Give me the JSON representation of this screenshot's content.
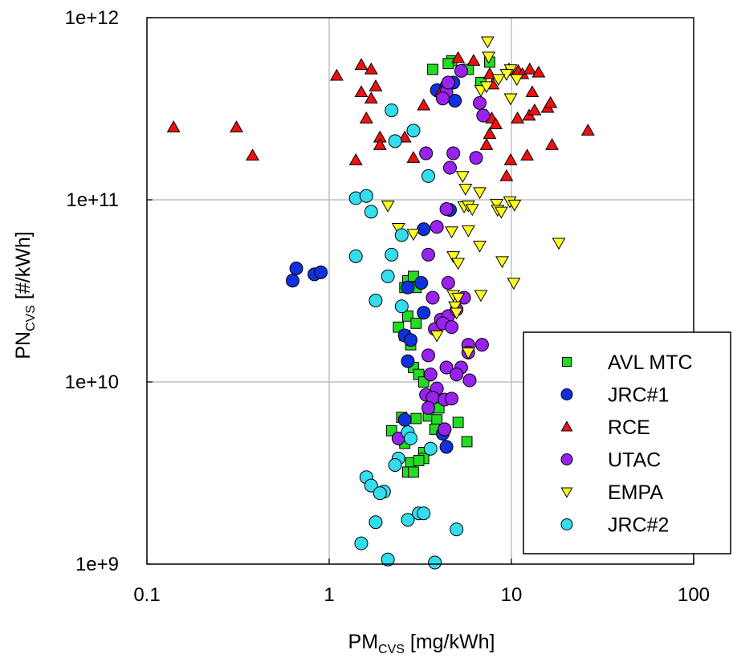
{
  "chart_data": {
    "type": "scatter",
    "x_scale": "log",
    "y_scale": "log",
    "xlim": [
      0.1,
      100
    ],
    "ylim": [
      1000000000,
      1000000000000
    ],
    "grid": true,
    "legend_position": "bottom-right",
    "xlabel": {
      "main": "PM",
      "sub": "CVS",
      "unit": " [mg/kWh]"
    },
    "ylabel": {
      "main": "PN",
      "sub": "CVS",
      "unit": " [#/kWh]"
    },
    "x_ticks": [
      {
        "value": 0.1,
        "label": "0.1"
      },
      {
        "value": 1,
        "label": "1"
      },
      {
        "value": 10,
        "label": "10"
      },
      {
        "value": 100,
        "label": "100"
      }
    ],
    "y_ticks": [
      {
        "value": 1000000000,
        "label": "1e+9"
      },
      {
        "value": 10000000000,
        "label": "1e+10"
      },
      {
        "value": 100000000000,
        "label": "1e+11"
      },
      {
        "value": 1000000000000,
        "label": "1e+12"
      }
    ],
    "series": [
      {
        "name": "AVL MTC",
        "marker": "square",
        "color": "#22dd22",
        "points": [
          [
            3.7,
            520000000000.0
          ],
          [
            4.7,
            580000000000.0
          ],
          [
            4.5,
            560000000000.0
          ],
          [
            5.8,
            520000000000.0
          ],
          [
            6.8,
            440000000000.0
          ],
          [
            7.6,
            570000000000.0
          ],
          [
            2.7,
            36000000000.0
          ],
          [
            2.9,
            38000000000.0
          ],
          [
            3.0,
            33000000000.0
          ],
          [
            2.6,
            33000000000.0
          ],
          [
            2.7,
            23000000000.0
          ],
          [
            3.0,
            21000000000.0
          ],
          [
            2.4,
            20000000000.0
          ],
          [
            2.6,
            18000000000.0
          ],
          [
            2.8,
            16000000000.0
          ],
          [
            2.9,
            12000000000.0
          ],
          [
            3.1,
            11000000000.0
          ],
          [
            3.3,
            10000000000.0
          ],
          [
            3.8,
            8500000000.0
          ],
          [
            4.0,
            7200000000.0
          ],
          [
            3.5,
            6500000000.0
          ],
          [
            3.9,
            6200000000.0
          ],
          [
            2.5,
            6400000000.0
          ],
          [
            3.0,
            6300000000.0
          ],
          [
            3.8,
            5500000000.0
          ],
          [
            5.1,
            6000000000.0
          ],
          [
            5.7,
            4700000000.0
          ],
          [
            2.2,
            5400000000.0
          ],
          [
            2.6,
            4600000000.0
          ],
          [
            3.3,
            4100000000.0
          ],
          [
            2.8,
            3600000000.0
          ],
          [
            3.3,
            3800000000.0
          ],
          [
            2.7,
            3200000000.0
          ],
          [
            2.9,
            3200000000.0
          ],
          [
            3.1,
            3700000000.0
          ]
        ]
      },
      {
        "name": "JRC#1",
        "marker": "circle",
        "color": "#1030dd",
        "points": [
          [
            0.63,
            36000000000.0
          ],
          [
            0.66,
            42000000000.0
          ],
          [
            0.83,
            39000000000.0
          ],
          [
            0.9,
            40000000000.0
          ],
          [
            3.9,
            400000000000.0
          ],
          [
            4.4,
            420000000000.0
          ],
          [
            4.9,
            350000000000.0
          ],
          [
            4.8,
            440000000000.0
          ],
          [
            3.3,
            69000000000.0
          ],
          [
            4.6,
            88000000000.0
          ],
          [
            2.7,
            33000000000.0
          ],
          [
            3.2,
            35000000000.0
          ],
          [
            3.3,
            24000000000.0
          ],
          [
            2.6,
            18000000000.0
          ],
          [
            2.8,
            17000000000.0
          ],
          [
            2.7,
            13000000000.0
          ],
          [
            2.6,
            6200000000.0
          ],
          [
            4.2,
            5200000000.0
          ],
          [
            4.4,
            4400000000.0
          ],
          [
            4.3,
            5500000000.0
          ]
        ]
      },
      {
        "name": "RCE",
        "marker": "triangle-up",
        "color": "#ee1111",
        "points": [
          [
            0.14,
            250000000000.0
          ],
          [
            0.31,
            250000000000.0
          ],
          [
            0.38,
            175000000000.0
          ],
          [
            1.1,
            480000000000.0
          ],
          [
            1.5,
            550000000000.0
          ],
          [
            1.7,
            520000000000.0
          ],
          [
            1.5,
            390000000000.0
          ],
          [
            1.8,
            420000000000.0
          ],
          [
            1.7,
            360000000000.0
          ],
          [
            1.6,
            280000000000.0
          ],
          [
            1.9,
            220000000000.0
          ],
          [
            2.6,
            220000000000.0
          ],
          [
            1.4,
            165000000000.0
          ],
          [
            1.9,
            200000000000.0
          ],
          [
            2.9,
            170000000000.0
          ],
          [
            3.3,
            330000000000.0
          ],
          [
            4.1,
            390000000000.0
          ],
          [
            5.1,
            600000000000.0
          ],
          [
            6.2,
            580000000000.0
          ],
          [
            7.6,
            490000000000.0
          ],
          [
            7.9,
            430000000000.0
          ],
          [
            9.7,
            520000000000.0
          ],
          [
            10.9,
            510000000000.0
          ],
          [
            11.5,
            490000000000.0
          ],
          [
            12.6,
            520000000000.0
          ],
          [
            14.1,
            500000000000.0
          ],
          [
            7.3,
            290000000000.0
          ],
          [
            7.8,
            280000000000.0
          ],
          [
            8.2,
            260000000000.0
          ],
          [
            7.6,
            230000000000.0
          ],
          [
            7.3,
            200000000000.0
          ],
          [
            9.9,
            165000000000.0
          ],
          [
            9.4,
            135000000000.0
          ],
          [
            12.2,
            175000000000.0
          ],
          [
            12.5,
            290000000000.0
          ],
          [
            13.4,
            310000000000.0
          ],
          [
            15.8,
            320000000000.0
          ],
          [
            16.4,
            340000000000.0
          ],
          [
            10.8,
            280000000000.0
          ],
          [
            16.7,
            200000000000.0
          ],
          [
            13.0,
            390000000000.0
          ],
          [
            26.3,
            240000000000.0
          ]
        ]
      },
      {
        "name": "UTAC",
        "marker": "circle",
        "color": "#9922ee",
        "points": [
          [
            5.3,
            510000000000.0
          ],
          [
            4.4,
            390000000000.0
          ],
          [
            4.5,
            440000000000.0
          ],
          [
            4.2,
            360000000000.0
          ],
          [
            6.7,
            340000000000.0
          ],
          [
            7.0,
            290000000000.0
          ],
          [
            3.4,
            180000000000.0
          ],
          [
            4.8,
            180000000000.0
          ],
          [
            6.4,
            170000000000.0
          ],
          [
            4.6,
            150000000000.0
          ],
          [
            4.4,
            89000000000.0
          ],
          [
            3.9,
            71000000000.0
          ],
          [
            3.5,
            50000000000.0
          ],
          [
            4.5,
            35000000000.0
          ],
          [
            3.7,
            29000000000.0
          ],
          [
            4.1,
            22000000000.0
          ],
          [
            4.5,
            23000000000.0
          ],
          [
            5.0,
            25000000000.0
          ],
          [
            5.5,
            29000000000.0
          ],
          [
            3.8,
            19500000000.0
          ],
          [
            4.2,
            21000000000.0
          ],
          [
            4.7,
            20000000000.0
          ],
          [
            5.8,
            16000000000.0
          ],
          [
            6.9,
            16000000000.0
          ],
          [
            5.8,
            14500000000.0
          ],
          [
            3.5,
            14000000000.0
          ],
          [
            4.4,
            12000000000.0
          ],
          [
            5.3,
            12000000000.0
          ],
          [
            3.6,
            11000000000.0
          ],
          [
            5.0,
            11000000000.0
          ],
          [
            5.9,
            10200000000.0
          ],
          [
            3.9,
            9200000000.0
          ],
          [
            3.4,
            8500000000.0
          ],
          [
            3.7,
            8200000000.0
          ],
          [
            4.3,
            8000000000.0
          ],
          [
            4.7,
            8100000000.0
          ],
          [
            3.5,
            7200000000.0
          ],
          [
            2.4,
            4900000000.0
          ],
          [
            4.3,
            5500000000.0
          ]
        ]
      },
      {
        "name": "EMPA",
        "marker": "triangle-down",
        "color": "#ffff22",
        "points": [
          [
            7.4,
            740000000000.0
          ],
          [
            7.5,
            610000000000.0
          ],
          [
            9.9,
            520000000000.0
          ],
          [
            9.4,
            490000000000.0
          ],
          [
            8.5,
            460000000000.0
          ],
          [
            10.7,
            460000000000.0
          ],
          [
            6.8,
            400000000000.0
          ],
          [
            7.3,
            420000000000.0
          ],
          [
            9.9,
            360000000000.0
          ],
          [
            5.4,
            135000000000.0
          ],
          [
            5.6,
            115000000000.0
          ],
          [
            6.7,
            110000000000.0
          ],
          [
            5.5,
            92000000000.0
          ],
          [
            5.8,
            93000000000.0
          ],
          [
            6.1,
            89000000000.0
          ],
          [
            8.3,
            95000000000.0
          ],
          [
            8.4,
            88000000000.0
          ],
          [
            8.8,
            86000000000.0
          ],
          [
            9.8,
            98000000000.0
          ],
          [
            10.4,
            94000000000.0
          ],
          [
            2.1,
            93000000000.0
          ],
          [
            2.4,
            70000000000.0
          ],
          [
            2.9,
            65000000000.0
          ],
          [
            4.7,
            67000000000.0
          ],
          [
            5.8,
            68000000000.0
          ],
          [
            6.7,
            56000000000.0
          ],
          [
            4.8,
            49000000000.0
          ],
          [
            5.1,
            45000000000.0
          ],
          [
            8.9,
            46000000000.0
          ],
          [
            10.3,
            35000000000.0
          ],
          [
            18.2,
            58000000000.0
          ],
          [
            4.8,
            30000000000.0
          ],
          [
            5.1,
            29000000000.0
          ],
          [
            6.8,
            30000000000.0
          ],
          [
            4.9,
            26000000000.0
          ],
          [
            5.0,
            24000000000.0
          ],
          [
            3.9,
            18000000000.0
          ],
          [
            5.8,
            14500000000.0
          ]
        ]
      },
      {
        "name": "JRC#2",
        "marker": "circle",
        "color": "#33ddee",
        "points": [
          [
            2.2,
            310000000000.0
          ],
          [
            2.9,
            240000000000.0
          ],
          [
            2.3,
            210000000000.0
          ],
          [
            3.5,
            135000000000.0
          ],
          [
            1.4,
            102000000000.0
          ],
          [
            1.6,
            105000000000.0
          ],
          [
            1.7,
            86000000000.0
          ],
          [
            2.5,
            64000000000.0
          ],
          [
            1.4,
            49000000000.0
          ],
          [
            2.2,
            50000000000.0
          ],
          [
            2.1,
            38000000000.0
          ],
          [
            1.8,
            28000000000.0
          ],
          [
            2.5,
            26000000000.0
          ],
          [
            2.7,
            5300000000.0
          ],
          [
            2.8,
            4900000000.0
          ],
          [
            3.6,
            4300000000.0
          ],
          [
            2.4,
            3800000000.0
          ],
          [
            2.3,
            3500000000.0
          ],
          [
            1.6,
            3000000000.0
          ],
          [
            1.7,
            2700000000.0
          ],
          [
            2.0,
            2500000000.0
          ],
          [
            1.9,
            2450000000.0
          ],
          [
            3.1,
            1900000000.0
          ],
          [
            3.3,
            1900000000.0
          ],
          [
            2.7,
            1750000000.0
          ],
          [
            1.8,
            1700000000.0
          ],
          [
            5.0,
            1550000000.0
          ],
          [
            1.5,
            1300000000.0
          ],
          [
            2.1,
            1060000000.0
          ],
          [
            3.8,
            1020000000.0
          ]
        ]
      }
    ]
  }
}
